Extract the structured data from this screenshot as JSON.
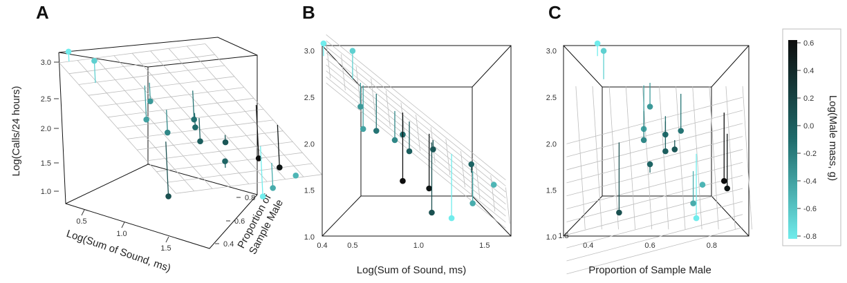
{
  "panels": [
    {
      "label": "A"
    },
    {
      "label": "B"
    },
    {
      "label": "C"
    }
  ],
  "colorbar": {
    "title": "Log(Male mass, g)",
    "low_color": "#70ecec",
    "high_color": "#0d0d0d",
    "ticks": [
      "0.6",
      "0.4",
      "0.2",
      "0.0",
      "-0.2",
      "-0.4",
      "-0.6",
      "-0.8"
    ]
  },
  "chart_data": [
    {
      "type": "scatter",
      "panel": "A",
      "title": "",
      "zlabel": "Log(Calls/24 hours)",
      "xlabel": "Log(Sum of Sound, ms)",
      "ylabel": "Proportion of Sample Male",
      "z_ticks": [
        "3.0",
        "2.5",
        "2.0",
        "1.5",
        "1.0"
      ],
      "x_ticks": [
        "0.5",
        "1.0",
        "1.5"
      ],
      "y_ticks": [
        "0.4",
        "0.6",
        "0.8"
      ],
      "view": "3D perspective with fitted regression surface",
      "points": [
        {
          "sound": 0.28,
          "prop": 0.43,
          "calls": 3.08,
          "mass": -0.8
        },
        {
          "sound": 0.5,
          "prop": 0.45,
          "calls": 3.0,
          "mass": -0.65
        },
        {
          "sound": 0.56,
          "prop": 0.6,
          "calls": 2.4,
          "mass": -0.35
        },
        {
          "sound": 0.58,
          "prop": 0.58,
          "calls": 2.16,
          "mass": -0.4
        },
        {
          "sound": 0.68,
          "prop": 0.7,
          "calls": 2.14,
          "mass": -0.15
        },
        {
          "sound": 0.82,
          "prop": 0.58,
          "calls": 2.04,
          "mass": -0.25
        },
        {
          "sound": 0.88,
          "prop": 0.65,
          "calls": 2.1,
          "mass": -0.1
        },
        {
          "sound": 0.93,
          "prop": 0.65,
          "calls": 1.92,
          "mass": 0.0
        },
        {
          "sound": 0.88,
          "prop": 0.84,
          "calls": 1.6,
          "mass": 0.6
        },
        {
          "sound": 1.08,
          "prop": 0.85,
          "calls": 1.52,
          "mass": 0.55
        },
        {
          "sound": 1.1,
          "prop": 0.5,
          "calls": 1.26,
          "mass": 0.1
        },
        {
          "sound": 1.11,
          "prop": 0.68,
          "calls": 1.94,
          "mass": 0.05
        },
        {
          "sound": 1.25,
          "prop": 0.75,
          "calls": 1.2,
          "mass": -0.8
        },
        {
          "sound": 1.4,
          "prop": 0.6,
          "calls": 1.78,
          "mass": -0.05
        },
        {
          "sound": 1.41,
          "prop": 0.74,
          "calls": 1.36,
          "mass": -0.45
        },
        {
          "sound": 1.57,
          "prop": 0.77,
          "calls": 1.56,
          "mass": -0.5
        }
      ]
    },
    {
      "type": "scatter",
      "panel": "B",
      "title": "",
      "xlabel": "Log(Sum of Sound, ms)",
      "ylabel": "",
      "y_ticks": [
        "3.0",
        "2.5",
        "2.0",
        "1.5",
        "1.0"
      ],
      "x_ticks": [
        "0.4",
        "0.5",
        "1.0",
        "1.5"
      ],
      "xlim": [
        0.27,
        1.7
      ],
      "ylim": [
        1.0,
        3.05
      ],
      "view": "projection onto calls vs. sound plane"
    },
    {
      "type": "scatter",
      "panel": "C",
      "title": "",
      "xlabel": "Proportion of Sample Male",
      "ylabel": "",
      "y_ticks": [
        "3.0",
        "2.5",
        "2.0",
        "1.5",
        "1.0"
      ],
      "x_ticks": [
        "1.5",
        "0.4",
        "0.6",
        "0.8"
      ],
      "xlim": [
        0.32,
        0.92
      ],
      "ylim": [
        1.0,
        3.05
      ],
      "view": "projection onto calls vs. proportion plane"
    }
  ]
}
